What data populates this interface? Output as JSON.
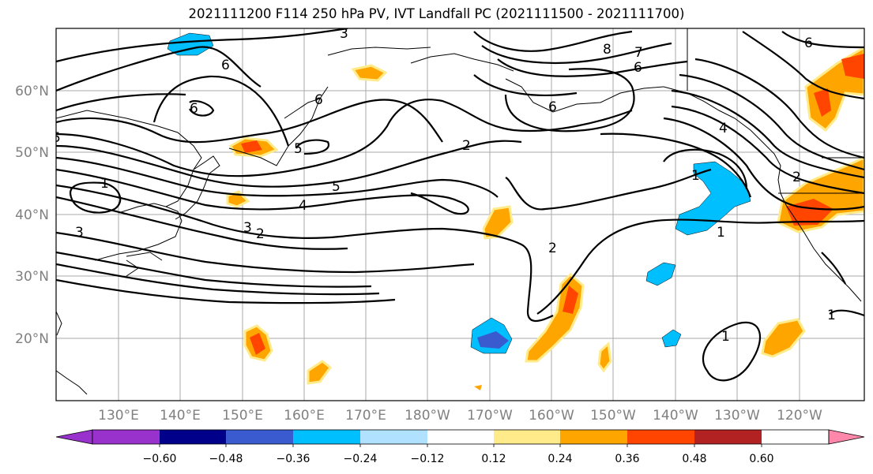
{
  "title": "2021111200 F114 250 hPa PV, IVT Landfall PC (2021111500 - 2021111700)",
  "lat_labels": [
    "60°N",
    "50°N",
    "40°N",
    "30°N",
    "20°N"
  ],
  "lon_labels": [
    "130°E",
    "140°E",
    "150°E",
    "160°E",
    "170°E",
    "180°W",
    "170°W",
    "160°W",
    "150°W",
    "140°W",
    "130°W",
    "120°W"
  ],
  "contour_labels": [
    "3",
    "6",
    "8",
    "7",
    "6",
    "6",
    "6",
    "5",
    "4",
    "3",
    "2",
    "1",
    "3",
    "2",
    "2",
    "1",
    "1",
    "1",
    "1",
    "6",
    "6",
    "4",
    "5",
    "5",
    "2"
  ],
  "colorbar": {
    "ticks": [
      "−0.60",
      "−0.48",
      "−0.36",
      "−0.24",
      "−0.12",
      "0.12",
      "0.24",
      "0.36",
      "0.48",
      "0.60"
    ],
    "colors": [
      "#9932cc",
      "#00008b",
      "#3a5bd0",
      "#00bfff",
      "#b0e2ff",
      "#ffffff",
      "#ffeb8a",
      "#ffa500",
      "#ff4500",
      "#b22222",
      "#ff88aa"
    ]
  },
  "colors": {
    "grid": "#a9a9a9",
    "axis_label": "#808080",
    "contour": "#000000"
  }
}
